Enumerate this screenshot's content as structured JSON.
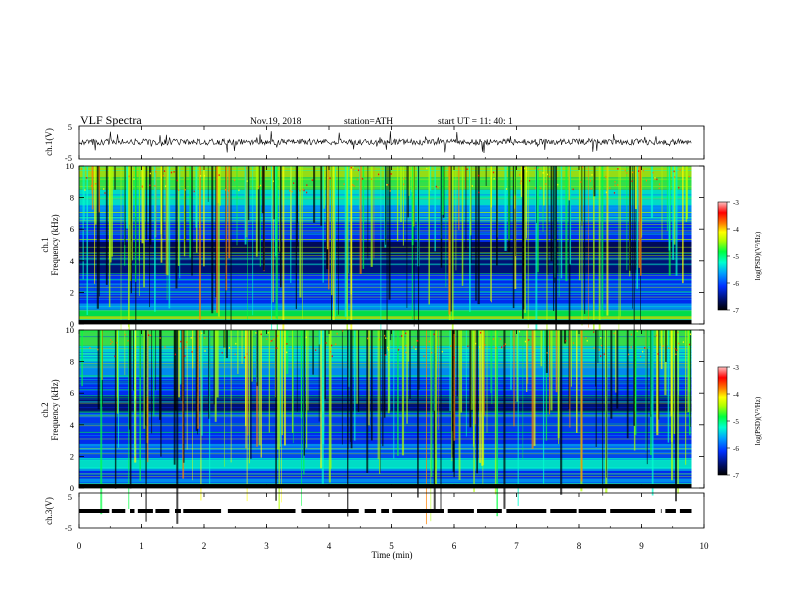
{
  "header": {
    "title": "VLF  Spectra",
    "date": "Nov.19, 2018",
    "station": "station=ATH",
    "start": "start  UT  =    11: 40: 1"
  },
  "chart_data": [
    {
      "type": "line",
      "name": "ch1-waveform",
      "ylabel": "ch.1(V)",
      "ylim": [
        -5,
        5
      ],
      "yticks": [
        "5",
        "-5"
      ]
    },
    {
      "type": "heatmap",
      "name": "ch1-spectrogram",
      "ylabel": "ch.1\nFrequency (kHz)",
      "ylabel_line1": "ch.1",
      "ylabel_line2": "Frequency  (kHz)",
      "ylim": [
        0,
        10
      ],
      "yticks": [
        "0",
        "2",
        "4",
        "6",
        "8",
        "10"
      ],
      "colorbar": {
        "label": "log(PSD)(V²/Hz)",
        "range": [
          -7,
          -3
        ],
        "ticks": [
          "-3",
          "-4",
          "-5",
          "-6",
          "-7"
        ]
      }
    },
    {
      "type": "heatmap",
      "name": "ch2-spectrogram",
      "ylabel_line1": "ch.2",
      "ylabel_line2": "Frequency  (kHz)",
      "ylim": [
        0,
        10
      ],
      "yticks": [
        "0",
        "2",
        "4",
        "6",
        "8",
        "10"
      ],
      "colorbar": {
        "label": "log(PSD)(V²/Hz)",
        "range": [
          -7,
          -3
        ],
        "ticks": [
          "-3",
          "-4",
          "-5",
          "-6",
          "-7"
        ]
      }
    },
    {
      "type": "line",
      "name": "ch3-waveform",
      "ylabel": "ch.3(V)",
      "ylim": [
        -5,
        5
      ],
      "yticks": [
        "5",
        "-5"
      ]
    }
  ],
  "xaxis": {
    "xlabel": "Time  (min)",
    "xlim": [
      0,
      10
    ],
    "xticks": [
      "0",
      "1",
      "2",
      "3",
      "4",
      "5",
      "6",
      "7",
      "8",
      "9",
      "10"
    ],
    "data_end": 9.8
  },
  "colors": {
    "scale": [
      "#000000",
      "#001070",
      "#0030ff",
      "#00a0ff",
      "#00ffd0",
      "#00ff40",
      "#b0ff00",
      "#ffff00",
      "#ff8000",
      "#ff0000",
      "#ffc0c0"
    ]
  }
}
